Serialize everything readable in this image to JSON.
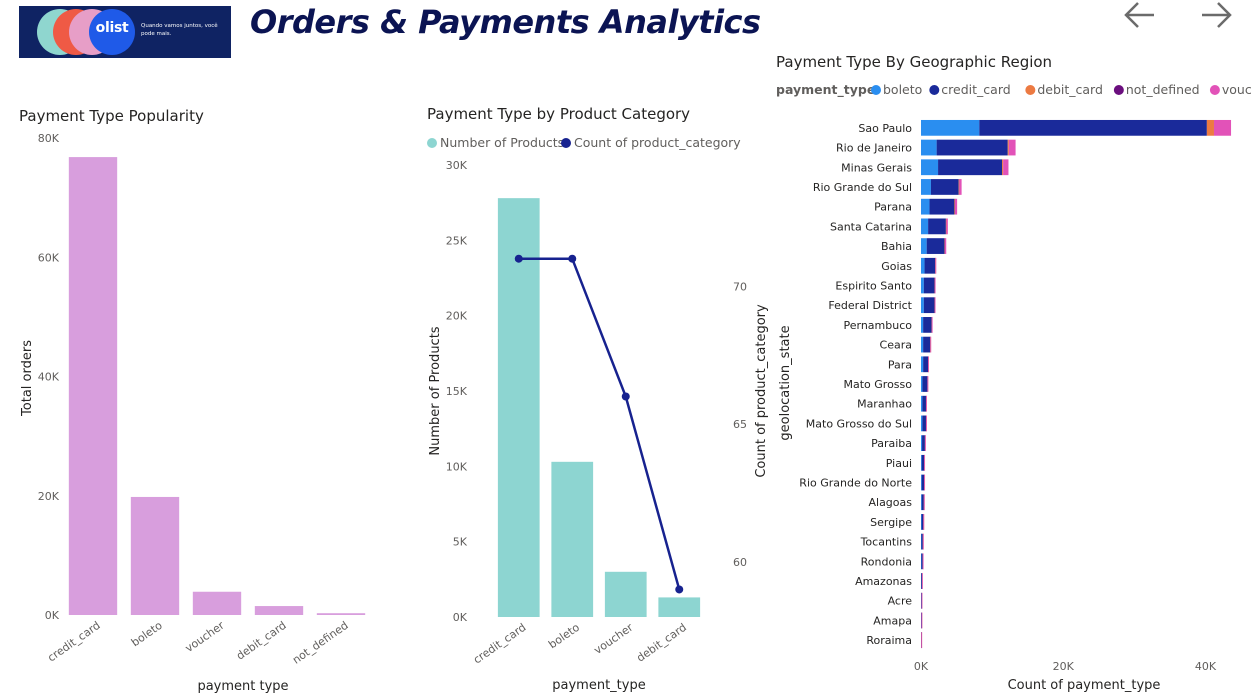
{
  "header": {
    "title": "Orders & Payments Analytics",
    "logo_brand": "olist",
    "logo_tagline": "Quando vamos juntos, você pode mais.",
    "nav": {
      "back_icon": "arrow-left-icon",
      "forward_icon": "arrow-right-icon"
    }
  },
  "colors": {
    "popularity_bar": "#d89edd",
    "product_bar": "#8dd5d1",
    "line": "#17228f",
    "boleto": "#2a8ef0",
    "credit_card": "#1a2a9a",
    "debit_card": "#ec7a42",
    "not_defined": "#6b0f7e",
    "voucher": "#e252b8"
  },
  "chart_data": [
    {
      "id": "popularity",
      "type": "bar",
      "title": "Payment Type Popularity",
      "xlabel": "payment type",
      "ylabel": "Total orders",
      "categories": [
        "credit_card",
        "boleto",
        "voucher",
        "debit_card",
        "not_defined"
      ],
      "values": [
        76800,
        19800,
        3900,
        1500,
        300
      ],
      "ylim": [
        0,
        80000
      ],
      "yticks": [
        "0K",
        "20K",
        "40K",
        "60K",
        "80K"
      ],
      "ytick_values": [
        0,
        20000,
        40000,
        60000,
        80000
      ]
    },
    {
      "id": "category",
      "type": "bar+line",
      "title": "Payment Type by Product Category",
      "legend": [
        "Number of Products",
        "Count of product_category"
      ],
      "xlabel": "payment_type",
      "ylabel": "Number of Products",
      "y2label": "Count of product_category",
      "categories": [
        "credit_card",
        "boleto",
        "voucher",
        "debit_card"
      ],
      "bar_values": [
        27800,
        10300,
        3000,
        1300
      ],
      "line_values": [
        71,
        71,
        66,
        59
      ],
      "ylim": [
        0,
        30000
      ],
      "yticks": [
        "0K",
        "5K",
        "10K",
        "15K",
        "20K",
        "25K",
        "30K"
      ],
      "ytick_values": [
        0,
        5000,
        10000,
        15000,
        20000,
        25000,
        30000
      ],
      "y2lim": [
        58,
        74.4
      ],
      "y2ticks": [
        "60",
        "65",
        "70"
      ],
      "y2tick_values": [
        60,
        65,
        70
      ]
    },
    {
      "id": "region",
      "type": "stacked-bar-horizontal",
      "title": "Payment Type By Geographic Region",
      "legend_title": "payment_type",
      "series_names": [
        "boleto",
        "credit_card",
        "debit_card",
        "not_defined",
        "voucher"
      ],
      "ylabel": "geolocation_state",
      "xlabel": "Count of payment_type",
      "xlim": [
        0,
        45000
      ],
      "xticks": [
        "0K",
        "20K",
        "40K"
      ],
      "xtick_values": [
        0,
        20000,
        40000
      ],
      "categories": [
        "Sao Paulo",
        "Rio de Janeiro",
        "Minas Gerais",
        "Rio Grande do Sul",
        "Parana",
        "Santa Catarina",
        "Bahia",
        "Goias",
        "Espirito Santo",
        "Federal District",
        "Pernambuco",
        "Ceara",
        "Para",
        "Mato Grosso",
        "Maranhao",
        "Mato Grosso do Sul",
        "Paraiba",
        "Piaui",
        "Rio Grande do Norte",
        "Alagoas",
        "Sergipe",
        "Tocantins",
        "Rondonia",
        "Amazonas",
        "Acre",
        "Amapa",
        "Roraima"
      ],
      "series": [
        {
          "name": "boleto",
          "values": [
            8200,
            2200,
            2400,
            1400,
            1200,
            1000,
            800,
            500,
            400,
            400,
            300,
            300,
            300,
            200,
            200,
            200,
            150,
            100,
            100,
            100,
            80,
            60,
            60,
            30,
            20,
            15,
            10
          ]
        },
        {
          "name": "credit_card",
          "values": [
            32000,
            10000,
            9000,
            3900,
            3500,
            2500,
            2500,
            1500,
            1500,
            1500,
            1200,
            1000,
            700,
            700,
            500,
            500,
            400,
            350,
            350,
            300,
            250,
            200,
            180,
            100,
            60,
            50,
            30
          ]
        },
        {
          "name": "debit_card",
          "values": [
            1000,
            150,
            150,
            80,
            80,
            60,
            50,
            30,
            30,
            30,
            20,
            20,
            15,
            15,
            10,
            10,
            10,
            5,
            5,
            5,
            5,
            3,
            3,
            2,
            1,
            1,
            1
          ]
        },
        {
          "name": "not_defined",
          "values": [
            0,
            0,
            0,
            0,
            0,
            0,
            0,
            0,
            0,
            0,
            0,
            0,
            0,
            0,
            0,
            0,
            0,
            0,
            0,
            0,
            0,
            0,
            0,
            0,
            0,
            0,
            0
          ]
        },
        {
          "name": "voucher",
          "values": [
            2400,
            950,
            750,
            330,
            300,
            220,
            200,
            120,
            120,
            110,
            90,
            70,
            60,
            50,
            40,
            40,
            30,
            25,
            25,
            20,
            20,
            15,
            10,
            8,
            4,
            3,
            2
          ]
        }
      ]
    }
  ]
}
